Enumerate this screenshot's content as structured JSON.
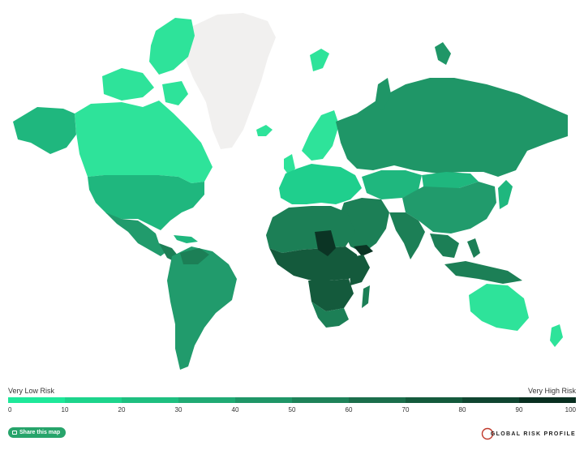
{
  "legend": {
    "low_label": "Very Low Risk",
    "high_label": "Very High Risk",
    "ticks": [
      "0",
      "10",
      "20",
      "30",
      "40",
      "50",
      "60",
      "70",
      "80",
      "90",
      "100"
    ],
    "colors": [
      "#1ee89a",
      "#1dd48c",
      "#1ebf80",
      "#20aa74",
      "#1f9667",
      "#1e8259",
      "#1b6e4b",
      "#145a3c",
      "#0f4530",
      "#082f20"
    ]
  },
  "share": {
    "label": "Share this map",
    "icon": "share-icon"
  },
  "brand": {
    "name": "GLOBAL RISK PROFILE"
  },
  "map_colors": {
    "ocean": "#ffffff",
    "no_data": "#f1f0ef",
    "very_low": "#2ee39a",
    "low": "#1fcf8d",
    "moderate": "#1fb77e",
    "medium": "#219b6c",
    "high": "#1c7f56",
    "very_high": "#145a3c",
    "extreme": "#0b3424"
  }
}
